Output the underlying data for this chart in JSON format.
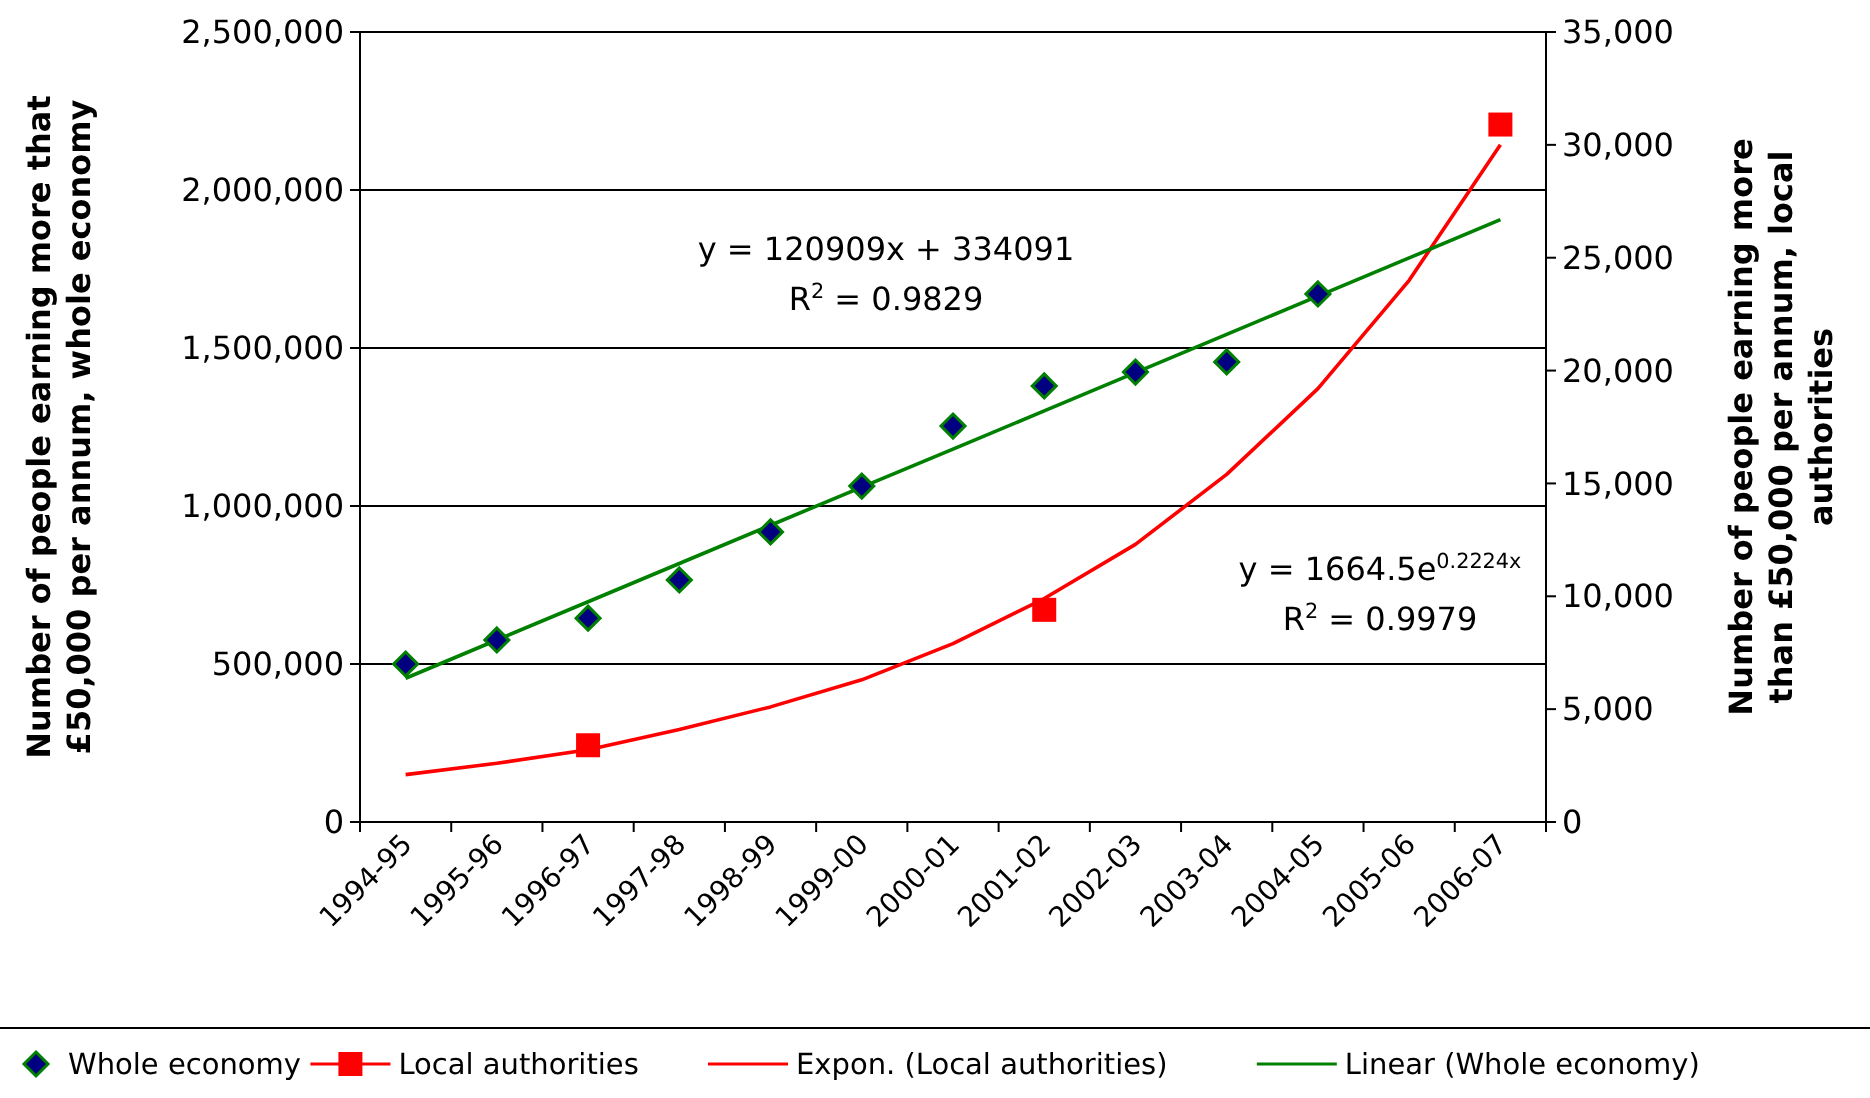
{
  "chart_data": {
    "type": "scatter",
    "categories": [
      "1994-95",
      "1995-96",
      "1996-97",
      "1997-98",
      "1998-99",
      "1999-00",
      "2000-01",
      "2001-02",
      "2002-03",
      "2003-04",
      "2004-05",
      "2005-06",
      "2006-07"
    ],
    "series": [
      {
        "name": "Whole economy",
        "marker": "diamond",
        "color": "#000080",
        "values": [
          500000,
          576000,
          645000,
          766000,
          918000,
          1063000,
          1253000,
          1380000,
          1424000,
          1456000,
          1671000,
          null,
          null
        ]
      },
      {
        "name": "Local authorities",
        "marker": "square",
        "axis": "y2",
        "color": "#ff0000",
        "values": [
          null,
          null,
          3400,
          null,
          null,
          null,
          null,
          9400,
          null,
          null,
          null,
          null,
          30900
        ]
      },
      {
        "name": "Expon. (Local authorities)",
        "type": "line",
        "marker": "none",
        "axis": "y2",
        "color": "#ff0000",
        "values": [
          2100,
          2600,
          3200,
          4100,
          5100,
          6300,
          7900,
          9900,
          12300,
          15400,
          19200,
          24000,
          30000
        ]
      },
      {
        "name": "Linear (Whole economy)",
        "type": "line",
        "marker": "none",
        "color": "#008000",
        "values": [
          455000,
          576000,
          697000,
          818000,
          939000,
          1060000,
          1180000,
          1301000,
          1422000,
          1543000,
          1664000,
          1785000,
          1906000
        ]
      }
    ],
    "ylim": [
      0,
      2500000
    ],
    "yticks": [
      0,
      {
        "value": 500000,
        "label": "500,000"
      },
      {
        "value": 1000000,
        "label": "1,000,000"
      },
      {
        "value": 1500000,
        "label": "1,500,000"
      },
      {
        "value": 2000000,
        "label": "2,000,000"
      },
      {
        "value": 2500000,
        "label": "2,500,000"
      }
    ],
    "y2lim": [
      0,
      35000
    ],
    "y2ticks": [
      0,
      {
        "value": 5000,
        "label": "5,000"
      },
      {
        "value": 10000,
        "label": "10,000"
      },
      {
        "value": 15000,
        "label": "15,000"
      },
      {
        "value": 20000,
        "label": "20,000"
      },
      {
        "value": 25000,
        "label": "25,000"
      },
      {
        "value": 30000,
        "label": "30,000"
      },
      {
        "value": 35000,
        "label": "35,000"
      }
    ],
    "ylabel": "Number of people earning more that £50,000 per annum, whole economy",
    "y2label": "Number of people earning more than £50,000 per annum, local authorities",
    "annotations": [
      "y = 120909x + 334091",
      "R$^{2}$ = 0.9829",
      "y = 1664.5e$^{0.2224x}$",
      "R$^{2}$ = 0.9979"
    ],
    "grid": "y",
    "legend": "bottom",
    "line_style": "solid"
  }
}
